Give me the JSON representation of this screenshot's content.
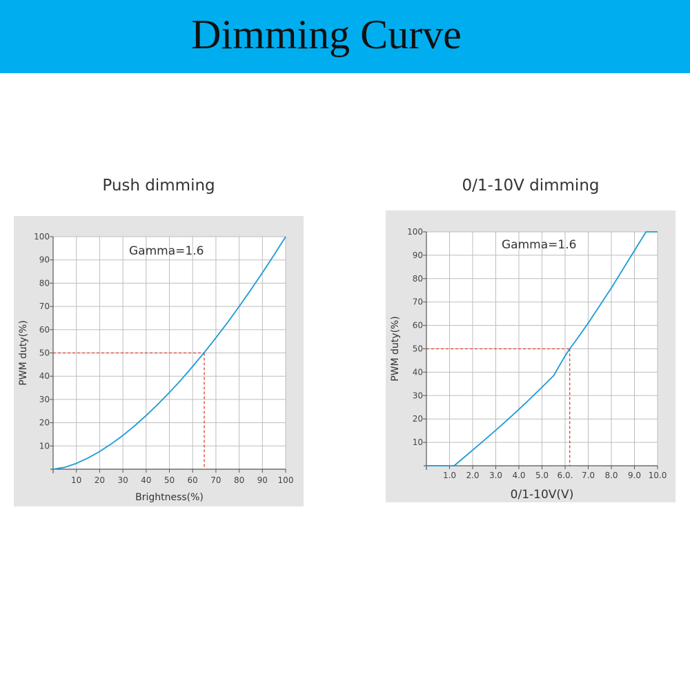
{
  "banner": {
    "title": "Dimming Curve",
    "color": "#00aeef"
  },
  "chart_data": [
    {
      "type": "line",
      "title": "Push dimming",
      "annotation": "Gamma=1.6",
      "xlabel": "Brightness(%)",
      "ylabel": "PWM duty(%)",
      "xlim": [
        0,
        100
      ],
      "ylim": [
        0,
        100
      ],
      "x_ticks": [
        10,
        20,
        30,
        40,
        50,
        60,
        70,
        80,
        90,
        100
      ],
      "x_tick_labels": [
        "10",
        "20",
        "30",
        "40",
        "50",
        "60",
        "70",
        "80",
        "90",
        "100"
      ],
      "y_ticks": [
        10,
        20,
        30,
        40,
        50,
        60,
        70,
        80,
        90,
        100
      ],
      "y_tick_labels": [
        "10",
        "20",
        "30",
        "40",
        "50",
        "60",
        "70",
        "80",
        "90",
        "100"
      ],
      "grid": true,
      "series": [
        {
          "color": "#1a9ad6",
          "x": [
            0,
            5,
            10,
            15,
            20,
            25,
            30,
            35,
            40,
            45,
            50,
            55,
            60,
            65,
            70,
            75,
            80,
            85,
            90,
            95,
            100
          ],
          "y": [
            0,
            0.8,
            2.5,
            4.8,
            7.6,
            10.9,
            14.5,
            18.6,
            23.1,
            27.9,
            33.0,
            38.4,
            44.2,
            50.2,
            56.5,
            63.1,
            70.0,
            77.1,
            84.5,
            92.1,
            100
          ]
        }
      ],
      "reference_lines": {
        "color": "#e0392b",
        "x": 65,
        "y": 50
      }
    },
    {
      "type": "line",
      "title": "0/1-10V dimming",
      "annotation": "Gamma=1.6",
      "xlabel": "0/1-10V(V)",
      "ylabel": "PWM duty(%)",
      "xlim": [
        0,
        10
      ],
      "ylim": [
        0,
        100
      ],
      "x_ticks": [
        1,
        2,
        3,
        4,
        5,
        6,
        7,
        8,
        9,
        10
      ],
      "x_tick_labels": [
        "1.0",
        "2.0",
        "3.0",
        "4.0",
        "5.0",
        "6.0.",
        "7.0",
        "8.0",
        "9.0",
        "10.0"
      ],
      "y_ticks": [
        10,
        20,
        30,
        40,
        50,
        60,
        70,
        80,
        90,
        100
      ],
      "y_tick_labels": [
        "10",
        "20",
        "30",
        "40",
        "50",
        "60",
        "70",
        "80",
        "90",
        "100"
      ],
      "grid": true,
      "series": [
        {
          "color": "#1a9ad6",
          "x": [
            0,
            1.2,
            1.5,
            2.0,
            2.5,
            3.0,
            3.5,
            4.0,
            4.5,
            5.0,
            5.5,
            6.0,
            6.2,
            6.5,
            7.0,
            7.5,
            8.0,
            8.5,
            9.0,
            9.5,
            10.0
          ],
          "y": [
            0,
            0,
            2.5,
            6.7,
            10.9,
            15.2,
            19.6,
            24.1,
            28.8,
            33.6,
            38.5,
            47.0,
            50.0,
            54.0,
            61.0,
            68.5,
            76.0,
            84.0,
            92.0,
            100,
            100
          ]
        }
      ],
      "reference_lines": {
        "color": "#e0392b",
        "x": 6.2,
        "y": 50
      }
    }
  ]
}
